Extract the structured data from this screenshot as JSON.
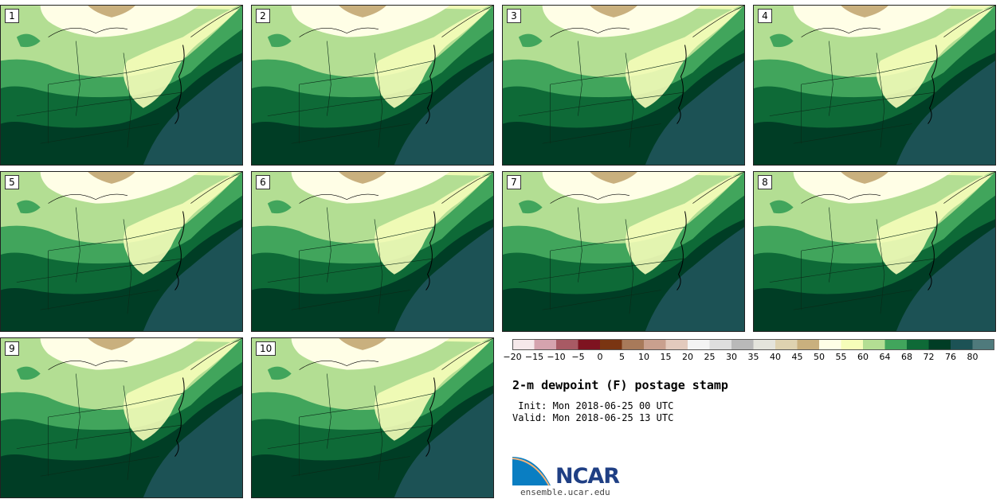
{
  "panels": [
    {
      "label": "1"
    },
    {
      "label": "2"
    },
    {
      "label": "3"
    },
    {
      "label": "4"
    },
    {
      "label": "5"
    },
    {
      "label": "6"
    },
    {
      "label": "7"
    },
    {
      "label": "8"
    },
    {
      "label": "9"
    },
    {
      "label": "10"
    }
  ],
  "colorbar": {
    "colors": [
      "#f5e8ea",
      "#d5a3ae",
      "#a85a64",
      "#7e1320",
      "#7a3512",
      "#a87a5a",
      "#c9a08e",
      "#e3cabd",
      "#f4f4f4",
      "#dedede",
      "#b9b9b9",
      "#e4e4dc",
      "#ded2b0",
      "#c9b07e",
      "#fffee6",
      "#f5fdb9",
      "#b3de93",
      "#41a55c",
      "#0e6a37",
      "#003d25",
      "#1c5255",
      "#4f7a7c"
    ],
    "tick_labels": [
      "−20",
      "−15",
      "−10",
      "−5",
      "0",
      "5",
      "10",
      "15",
      "20",
      "25",
      "30",
      "35",
      "40",
      "45",
      "50",
      "55",
      "60",
      "64",
      "68",
      "72",
      "76",
      "80"
    ]
  },
  "title": "2-m dewpoint (F) postage stamp",
  "init": " Init: Mon 2018-06-25 00 UTC",
  "valid": "Valid: Mon 2018-06-25 13 UTC",
  "logo": {
    "text": "NCAR",
    "site": "ensemble.ucar.edu",
    "color_blue": "#1f3f84",
    "color_light": "#0a7ec2"
  }
}
